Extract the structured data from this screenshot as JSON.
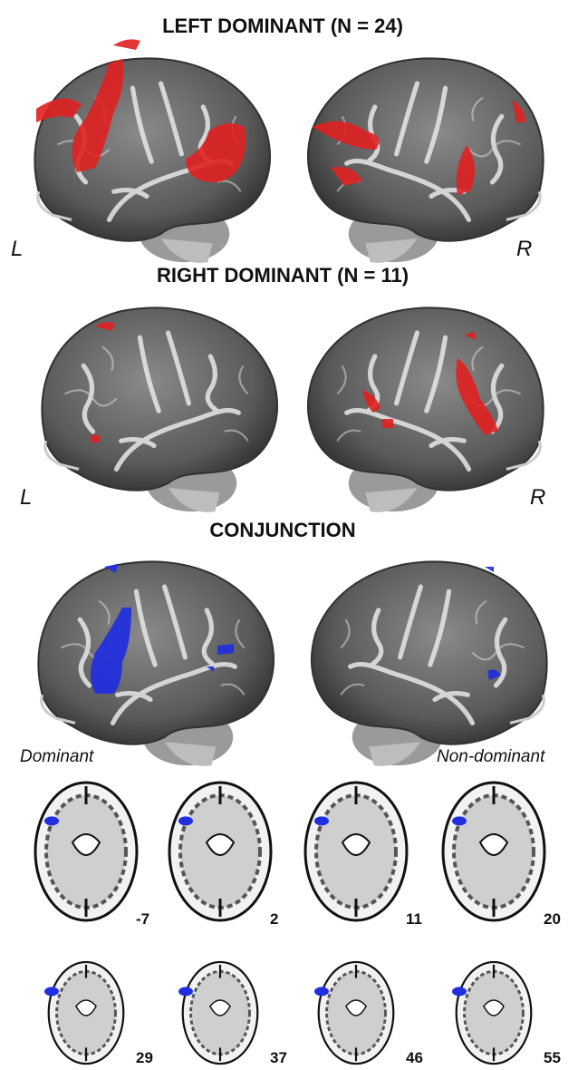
{
  "panels": [
    {
      "title": "LEFT DOMINANT (N = 24)",
      "left_label": "L",
      "right_label": "R"
    },
    {
      "title": "RIGHT DOMINANT (N = 11)",
      "left_label": "L",
      "right_label": "R"
    },
    {
      "title": "CONJUNCTION",
      "left_label": "Dominant",
      "right_label": "Non-dominant"
    }
  ],
  "slices": [
    -7,
    2,
    11,
    20,
    29,
    37,
    46,
    55
  ]
}
